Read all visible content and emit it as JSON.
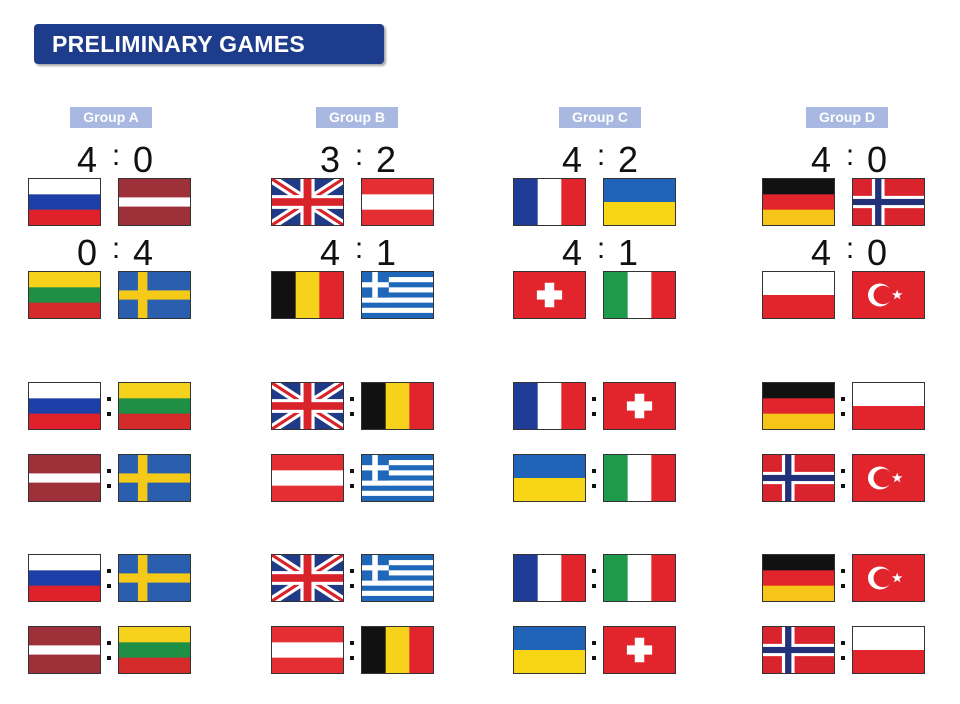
{
  "title": "PRELIMINARY GAMES",
  "groups": [
    {
      "label": "Group A",
      "result1": {
        "home_score": "4",
        "separator": ":",
        "away_score": "0"
      },
      "result2": {
        "home_score": "0",
        "separator": ":",
        "away_score": "4"
      },
      "matches": [
        {
          "home": "russia",
          "away": "latvia"
        },
        {
          "home": "lithuania",
          "away": "sweden"
        },
        {
          "home": "russia",
          "away": "lithuania"
        },
        {
          "home": "latvia",
          "away": "sweden"
        },
        {
          "home": "russia",
          "away": "sweden"
        },
        {
          "home": "latvia",
          "away": "lithuania"
        }
      ]
    },
    {
      "label": "Group B",
      "result1": {
        "home_score": "3",
        "separator": ":",
        "away_score": "2"
      },
      "result2": {
        "home_score": "4",
        "separator": ":",
        "away_score": "1"
      },
      "matches": [
        {
          "home": "great-britain",
          "away": "austria"
        },
        {
          "home": "belgium",
          "away": "greece"
        },
        {
          "home": "great-britain",
          "away": "belgium"
        },
        {
          "home": "austria",
          "away": "greece"
        },
        {
          "home": "great-britain",
          "away": "greece"
        },
        {
          "home": "austria",
          "away": "belgium"
        }
      ]
    },
    {
      "label": "Group C",
      "result1": {
        "home_score": "4",
        "separator": ":",
        "away_score": "2"
      },
      "result2": {
        "home_score": "4",
        "separator": ":",
        "away_score": "1"
      },
      "matches": [
        {
          "home": "france",
          "away": "ukraine"
        },
        {
          "home": "switzerland",
          "away": "italy"
        },
        {
          "home": "france",
          "away": "switzerland"
        },
        {
          "home": "ukraine",
          "away": "italy"
        },
        {
          "home": "france",
          "away": "italy"
        },
        {
          "home": "ukraine",
          "away": "switzerland"
        }
      ]
    },
    {
      "label": "Group D",
      "result1": {
        "home_score": "4",
        "separator": ":",
        "away_score": "0"
      },
      "result2": {
        "home_score": "4",
        "separator": ":",
        "away_score": "0"
      },
      "matches": [
        {
          "home": "germany",
          "away": "norway"
        },
        {
          "home": "poland",
          "away": "turkey"
        },
        {
          "home": "germany",
          "away": "poland"
        },
        {
          "home": "norway",
          "away": "turkey"
        },
        {
          "home": "germany",
          "away": "turkey"
        },
        {
          "home": "norway",
          "away": "poland"
        }
      ]
    }
  ],
  "colors": {
    "banner": "#1e3c8c",
    "group_label_bg": "#a8b8e0",
    "score_text": "#111111"
  }
}
